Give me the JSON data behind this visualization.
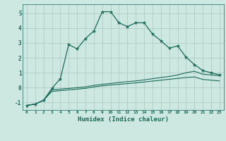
{
  "title": "",
  "xlabel": "Humidex (Indice chaleur)",
  "background_color": "#cde8e0",
  "grid_color": "#a8c8c0",
  "line_color": "#1a6b5a",
  "xlim": [
    -0.5,
    23.5
  ],
  "ylim": [
    -1.5,
    5.6
  ],
  "xticks": [
    0,
    1,
    2,
    3,
    4,
    5,
    6,
    7,
    8,
    9,
    10,
    11,
    12,
    13,
    14,
    15,
    16,
    17,
    18,
    19,
    20,
    21,
    22,
    23
  ],
  "yticks": [
    -1,
    0,
    1,
    2,
    3,
    4,
    5
  ],
  "line1_x": [
    0,
    1,
    2,
    3,
    4,
    5,
    6,
    7,
    8,
    9,
    10,
    11,
    12,
    13,
    14,
    15,
    16,
    17,
    18,
    19,
    20,
    21,
    22,
    23
  ],
  "line1_y": [
    -1.2,
    -1.1,
    -0.85,
    -0.05,
    0.6,
    2.9,
    2.6,
    3.3,
    3.8,
    5.1,
    5.1,
    4.35,
    4.1,
    4.35,
    4.35,
    3.6,
    3.15,
    2.65,
    2.8,
    2.05,
    1.55,
    1.15,
    1.0,
    0.85
  ],
  "line2_x": [
    0,
    1,
    2,
    3,
    4,
    5,
    6,
    7,
    8,
    9,
    10,
    11,
    12,
    13,
    14,
    15,
    16,
    17,
    18,
    19,
    20,
    21,
    22,
    23
  ],
  "line2_y": [
    -1.2,
    -1.1,
    -0.85,
    -0.15,
    -0.1,
    -0.05,
    0.0,
    0.05,
    0.15,
    0.22,
    0.28,
    0.35,
    0.4,
    0.45,
    0.52,
    0.6,
    0.68,
    0.75,
    0.85,
    1.0,
    1.1,
    0.9,
    0.85,
    0.8
  ],
  "line3_x": [
    0,
    1,
    2,
    3,
    4,
    5,
    6,
    7,
    8,
    9,
    10,
    11,
    12,
    13,
    14,
    15,
    16,
    17,
    18,
    19,
    20,
    21,
    22,
    23
  ],
  "line3_y": [
    -1.2,
    -1.1,
    -0.85,
    -0.25,
    -0.2,
    -0.15,
    -0.1,
    -0.05,
    0.05,
    0.12,
    0.18,
    0.22,
    0.27,
    0.32,
    0.38,
    0.44,
    0.5,
    0.56,
    0.62,
    0.68,
    0.72,
    0.55,
    0.5,
    0.45
  ]
}
